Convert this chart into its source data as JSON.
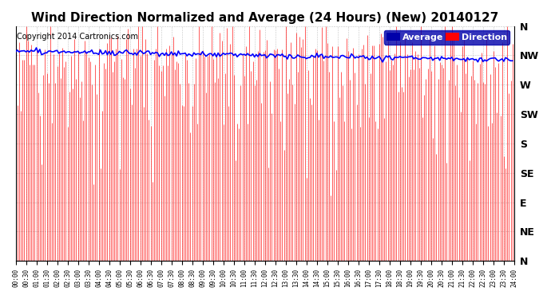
{
  "title": "Wind Direction Normalized and Average (24 Hours) (New) 20140127",
  "copyright": "Copyright 2014 Cartronics.com",
  "ylabel_right": [
    "N",
    "NW",
    "W",
    "SW",
    "S",
    "SE",
    "E",
    "NE",
    "N"
  ],
  "y_ticks": [
    360,
    315,
    270,
    225,
    180,
    135,
    90,
    45,
    0
  ],
  "ylim": [
    0,
    360
  ],
  "legend_labels": [
    "Average",
    "Direction"
  ],
  "legend_colors": [
    "#0000ff",
    "#ff0000"
  ],
  "avg_line_color": "#0000ff",
  "bar_color": "#ff0000",
  "background_color": "#ffffff",
  "grid_color": "#aaaaaa",
  "title_fontsize": 11,
  "copyright_fontsize": 7,
  "plot_bg": "#ffffff"
}
